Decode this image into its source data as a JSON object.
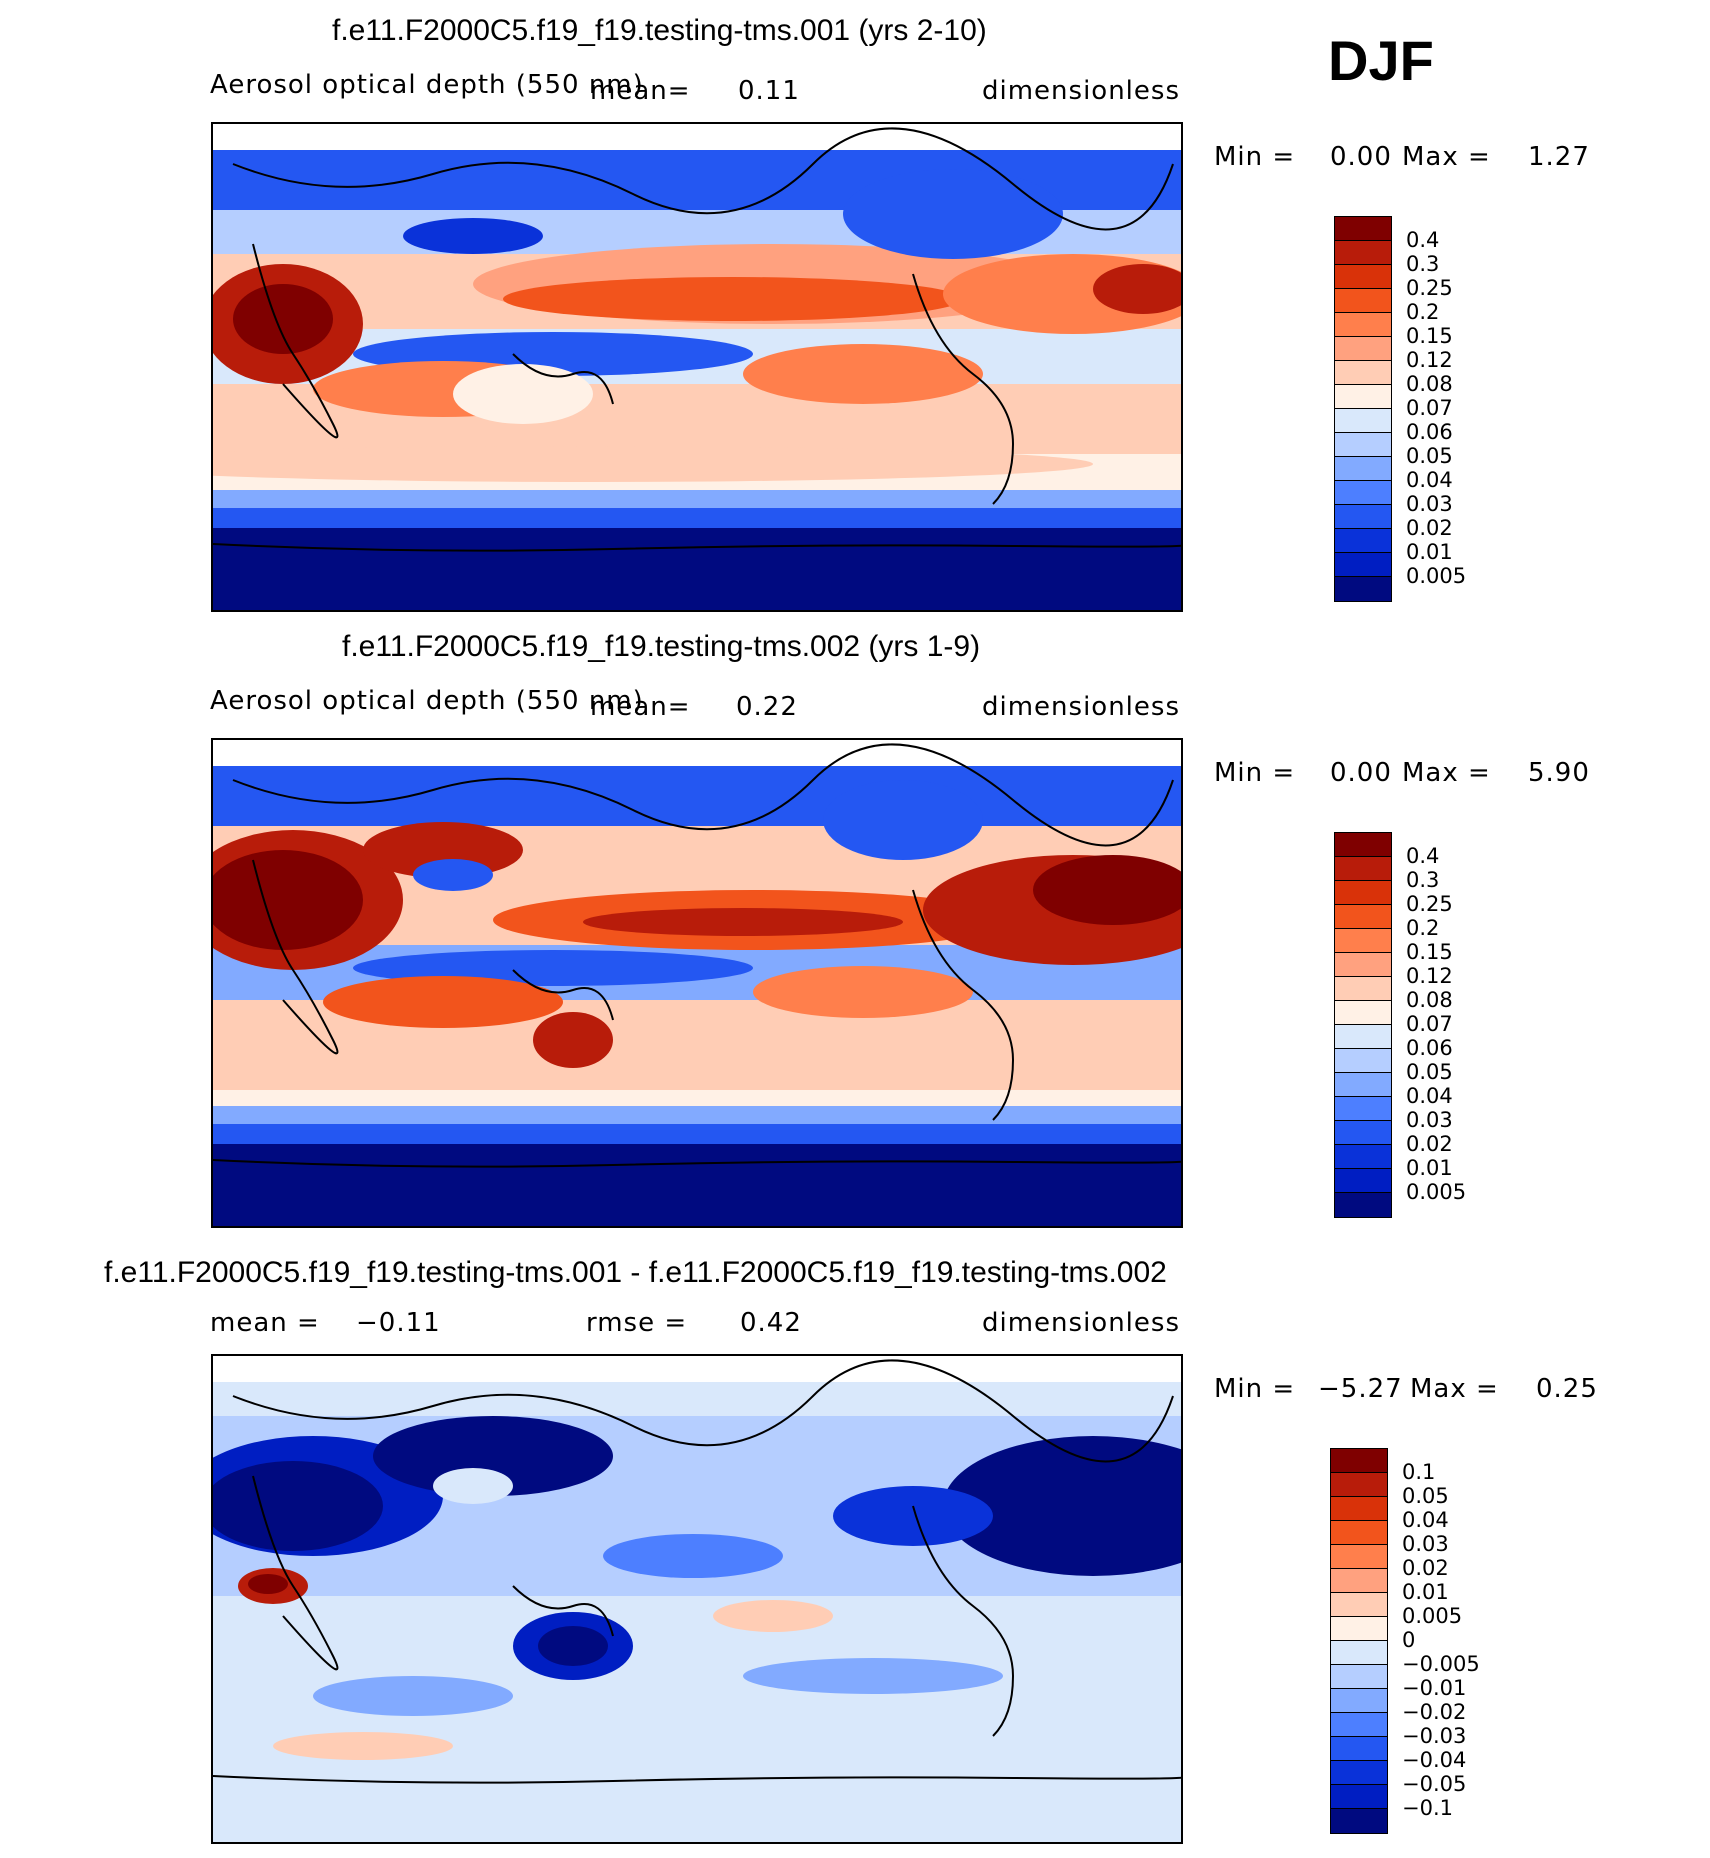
{
  "season": "DJF",
  "panels": [
    {
      "id": "case1",
      "title": "f.e11.F2000C5.f19_f19.testing-tms.001 (yrs 2-10)",
      "variable": "Aerosol optical depth (550 nm)",
      "mean_label": "mean=",
      "mean_value": "0.11",
      "units": "dimensionless",
      "min_label": "Min =",
      "min_value": "0.00",
      "max_label": "Max =",
      "max_value": "1.27",
      "levels": [
        "0.4",
        "0.3",
        "0.25",
        "0.2",
        "0.15",
        "0.12",
        "0.08",
        "0.07",
        "0.06",
        "0.05",
        "0.04",
        "0.03",
        "0.02",
        "0.01",
        "0.005"
      ],
      "colors": [
        "#7f0000",
        "#b81c0a",
        "#d93209",
        "#f2541c",
        "#ff7f4c",
        "#ffa17f",
        "#ffcdb5",
        "#fff1e6",
        "#d9e8fb",
        "#b5ceff",
        "#82aaff",
        "#4d7fff",
        "#2457f2",
        "#0a32d9",
        "#001ec2",
        "#000a80"
      ]
    },
    {
      "id": "case2",
      "title": "f.e11.F2000C5.f19_f19.testing-tms.002 (yrs 1-9)",
      "variable": "Aerosol optical depth (550 nm)",
      "mean_label": "mean=",
      "mean_value": "0.22",
      "units": "dimensionless",
      "min_label": "Min =",
      "min_value": "0.00",
      "max_label": "Max =",
      "max_value": "5.90",
      "levels": [
        "0.4",
        "0.3",
        "0.25",
        "0.2",
        "0.15",
        "0.12",
        "0.08",
        "0.07",
        "0.06",
        "0.05",
        "0.04",
        "0.03",
        "0.02",
        "0.01",
        "0.005"
      ],
      "colors": [
        "#7f0000",
        "#b81c0a",
        "#d93209",
        "#f2541c",
        "#ff7f4c",
        "#ffa17f",
        "#ffcdb5",
        "#fff1e6",
        "#d9e8fb",
        "#b5ceff",
        "#82aaff",
        "#4d7fff",
        "#2457f2",
        "#0a32d9",
        "#001ec2",
        "#000a80"
      ]
    },
    {
      "id": "diff",
      "title": "f.e11.F2000C5.f19_f19.testing-tms.001 - f.e11.F2000C5.f19_f19.testing-tms.002",
      "mean_label": "mean =",
      "mean_value": "−0.11",
      "rmse_label": "rmse =",
      "rmse_value": "0.42",
      "units": "dimensionless",
      "min_label": "Min =",
      "min_value": "−5.27",
      "max_label": "Max =",
      "max_value": "0.25",
      "levels": [
        "0.1",
        "0.05",
        "0.04",
        "0.03",
        "0.02",
        "0.01",
        "0.005",
        "0",
        "−0.005",
        "−0.01",
        "−0.02",
        "−0.03",
        "−0.04",
        "−0.05",
        "−0.1"
      ],
      "colors": [
        "#7f0000",
        "#b81c0a",
        "#d93209",
        "#f2541c",
        "#ff7f4c",
        "#ffa17f",
        "#ffcdb5",
        "#fff1e6",
        "#d9e8fb",
        "#b5ceff",
        "#82aaff",
        "#4d7fff",
        "#2457f2",
        "#0a32d9",
        "#001ec2",
        "#000a80"
      ]
    }
  ]
}
